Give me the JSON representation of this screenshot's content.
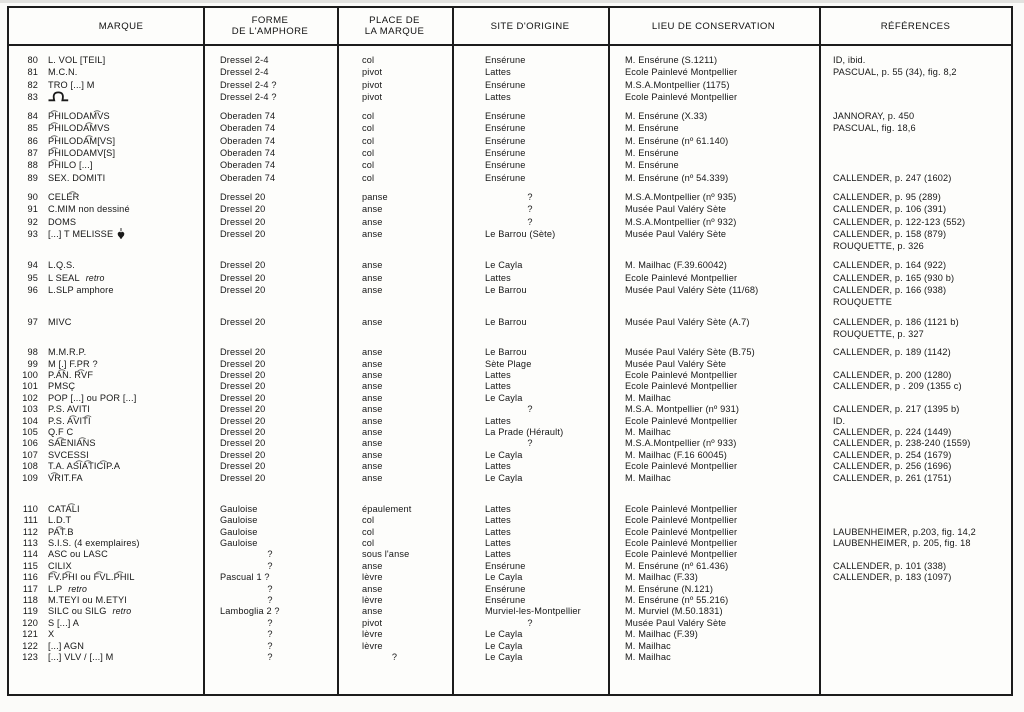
{
  "colors": {
    "ink": "#1c1c1c",
    "paper": "#fbfbf9"
  },
  "table": {
    "columns": [
      {
        "label": "MARQUE"
      },
      {
        "label": "FORME",
        "label2": "DE L'AMPHORE"
      },
      {
        "label": "PLACE DE",
        "label2": "LA MARQUE"
      },
      {
        "label": "SITE D'ORIGINE"
      },
      {
        "label": "LIEU DE CONSERVATION"
      },
      {
        "label": "RÉFÉRENCES"
      }
    ],
    "groups": [
      {
        "rows": [
          {
            "n": "80",
            "marque": "L. VOL [TEIL]",
            "forme": "Dressel 2-4",
            "place": "col",
            "site": "Ensérune",
            "lieu": "M. Ensérune (S.1211)",
            "ref": "ID, ibid."
          },
          {
            "n": "81",
            "marque": "M.C.N.",
            "forme": "Dressel 2-4",
            "place": "pivot",
            "site": "Lattes",
            "lieu": "Ecole Painlevé Montpellier",
            "ref": "PASCUAL, p. 55 (34), fig. 8,2"
          },
          {
            "n": "82",
            "marque": "TRO [...] M",
            "forme": "Dressel 2-4 ?",
            "place": "pivot",
            "site": "Ensérune",
            "lieu": "M.S.A.Montpellier (1175)",
            "ref": ""
          },
          {
            "n": "83",
            "marque": "",
            "glyph": "stamp-ligature",
            "forme": "Dressel 2-4 ?",
            "place": "pivot",
            "site": "Lattes",
            "lieu": "Ecole Painlevé Montpellier",
            "ref": ""
          }
        ]
      },
      {
        "rows": [
          {
            "n": "84",
            "marque": "P͡HILODAM͡VS",
            "forme": "Oberaden 74",
            "place": "col",
            "site": "Ensérune",
            "lieu": "M. Ensérune (X.33)",
            "ref": "JANNORAY, p. 450"
          },
          {
            "n": "85",
            "marque": "P͡HILODA͡MVS",
            "forme": "Oberaden 74",
            "place": "col",
            "site": "Ensérune",
            "lieu": "M. Ensérune",
            "ref": "PASCUAL, fig. 18,6"
          },
          {
            "n": "86",
            "marque": "P͡HILODA͡M[VS]",
            "forme": "Oberaden 74",
            "place": "col",
            "site": "Ensérune",
            "lieu": "M. Ensérune (nº 61.140)",
            "ref": ""
          },
          {
            "n": "87",
            "marque": "P͡HILODAMV[S]",
            "forme": "Oberaden 74",
            "place": "col",
            "site": "Ensérune",
            "lieu": "M. Ensérune",
            "ref": ""
          },
          {
            "n": "88",
            "marque": "P͡HILO [...]",
            "forme": "Oberaden 74",
            "place": "col",
            "site": "Ensérune",
            "lieu": "M. Ensérune",
            "ref": ""
          },
          {
            "n": "89",
            "marque": "SEX. DOMITI",
            "forme": "Oberaden 74",
            "place": "col",
            "site": "Ensérune",
            "lieu": "M. Ensérune (nº 54.339)",
            "ref": "CALLENDER, p. 247 (1602)"
          }
        ]
      },
      {
        "rows": [
          {
            "n": "90",
            "marque": "CELE͡R",
            "forme": "Dressel 20",
            "place": "panse",
            "site": "?",
            "lieu": "M.S.A.Montpellier (nº 935)",
            "ref": "CALLENDER, p. 95 (289)"
          },
          {
            "n": "91",
            "marque": "C.MIM non dessiné",
            "forme": "Dressel 20",
            "place": "anse",
            "site": "?",
            "lieu": "Musée Paul Valéry Sète",
            "ref": "CALLENDER, p. 106 (391)"
          },
          {
            "n": "92",
            "marque": "DOMS",
            "forme": "Dressel 20",
            "place": "anse",
            "site": "?",
            "lieu": "M.S.A.Montpellier (nº 932)",
            "ref": "CALLENDER, p. 122-123 (552)"
          },
          {
            "n": "93",
            "marque": "[...] T MELISSE",
            "symbol": "hedera",
            "forme": "Dressel 20",
            "place": "anse",
            "site": "Le Barrou (Sète)",
            "lieu": "Musée Paul Valéry Sète",
            "ref": "CALLENDER, p. 158 (879)",
            "ref2": "ROUQUETTE, p. 326"
          }
        ]
      },
      {
        "rows": [
          {
            "n": "94",
            "marque": "L.Q.S.",
            "forme": "Dressel 20",
            "place": "anse",
            "site": "Le Cayla",
            "lieu": "M. Mailhac (F.39.60042)",
            "ref": "CALLENDER, p. 164 (922)"
          },
          {
            "n": "95",
            "marque": "L SEAL",
            "note": "retro",
            "forme": "Dressel 20",
            "place": "anse",
            "site": "Lattes",
            "lieu": "Ecole Painlevé Montpellier",
            "ref": "CALLENDER, p. 165 (930 b)"
          },
          {
            "n": "96",
            "marque": "L.SLP  amphore",
            "forme": "Dressel 20",
            "place": "anse",
            "site": "Le Barrou",
            "lieu": "Musée Paul Valéry Sète (11/68)",
            "ref": "CALLENDER, p. 166 (938)",
            "ref2": "ROUQUETTE"
          }
        ]
      },
      {
        "rows": [
          {
            "n": "97",
            "marque": "MIVC",
            "forme": "Dressel 20",
            "place": "anse",
            "site": "Le Barrou",
            "lieu": "Musée Paul Valéry Sète (A.7)",
            "ref": "CALLENDER, p. 186 (1121 b)",
            "ref2": "ROUQUETTE, p. 327"
          }
        ]
      },
      {
        "rows": [
          {
            "n": "98",
            "marque": "M.M.R.P.",
            "forme": "Dressel 20",
            "place": "anse",
            "site": "Le Barrou",
            "lieu": "Musée Paul Valéry Sète (B.75)",
            "ref": "CALLENDER, p. 189 (1142)"
          },
          {
            "n": "99",
            "marque": "M [.] F.PR ?",
            "forme": "Dressel 20",
            "place": "anse",
            "site": "Sète Plage",
            "lieu": "Musée Paul Valéry Sète",
            "ref": ""
          },
          {
            "n": "100",
            "marque": "P.A͡N. R͡VF",
            "forme": "Dressel 20",
            "place": "anse",
            "site": "Lattes",
            "lieu": "Ecole Painlevé Montpellier",
            "ref": "CALLENDER, p. 200 (1280)"
          },
          {
            "n": "101",
            "marque": "PMSÇ",
            "forme": "Dressel 20",
            "place": "anse",
            "site": "Lattes",
            "lieu": "Ecole Painlevé Montpellier",
            "ref": "CALLENDER, p . 209 (1355 c)"
          },
          {
            "n": "102",
            "marque": "POP [...] ou POR [...]",
            "forme": "Dressel 20",
            "place": "anse",
            "site": "Le Cayla",
            "lieu": "M. Mailhac",
            "ref": ""
          },
          {
            "n": "103",
            "marque": "P.S. AVITI",
            "forme": "Dressel 20",
            "place": "anse",
            "site": "?",
            "lieu": "M.S.A. Montpellier (nº 931)",
            "ref": "CALLENDER, p. 217 (1395 b)"
          },
          {
            "n": "104",
            "marque": "P.S. A͡VIT͡I",
            "forme": "Dressel 20",
            "place": "anse",
            "site": "Lattes",
            "lieu": "Ecole Painlevé Montpellier",
            "ref": "ID."
          },
          {
            "n": "105",
            "marque": "Q.F C",
            "forme": "Dressel 20",
            "place": "anse",
            "site": "La Prade (Hérault)",
            "lieu": "M. Mailhac",
            "ref": "CALLENDER, p. 224 (1449)"
          },
          {
            "n": "106",
            "marque": "SA͡ENIA͡NS",
            "forme": "Dressel 20",
            "place": "anse",
            "site": "?",
            "lieu": "M.S.A.Montpellier (nº 933)",
            "ref": "CALLENDER, p. 238-240 (1559)"
          },
          {
            "n": "107",
            "marque": "SVCESSI",
            "forme": "Dressel 20",
            "place": "anse",
            "site": "Le Cayla",
            "lieu": "M. Mailhac (F.16 60045)",
            "ref": "CALLENDER, p. 254 (1679)"
          },
          {
            "n": "108",
            "marque": "T.A. AS͡IA͡TIC͡IP.A",
            "forme": "Dressel 20",
            "place": "anse",
            "site": "Lattes",
            "lieu": "Ecole Painlevé Montpellier",
            "ref": "CALLENDER, p. 256 (1696)"
          },
          {
            "n": "109",
            "marque": "V͡RIT.FA",
            "forme": "Dressel 20",
            "place": "anse",
            "site": "Le Cayla",
            "lieu": "M. Mailhac",
            "ref": "CALLENDER, p. 261 (1751)"
          }
        ]
      },
      {
        "rows": [
          {
            "n": "110",
            "marque": "CATA͡LI",
            "forme": "Gauloise",
            "place": "épaulement",
            "site": "Lattes",
            "lieu": "Ecole Painlevé Montpellier",
            "ref": ""
          },
          {
            "n": "111",
            "marque": "L.D.T",
            "forme": "Gauloise",
            "place": "col",
            "site": "Lattes",
            "lieu": "Ecole Painlevé Montpellier",
            "ref": ""
          },
          {
            "n": "112",
            "marque": "PA͡T.B",
            "forme": "Gauloise",
            "place": "col",
            "site": "Lattes",
            "lieu": "Ecole Painlevé Montpellier",
            "ref": "LAUBENHEIMER, p.203, fig. 14,2"
          },
          {
            "n": "113",
            "marque": "S.I.S. (4 exemplaires)",
            "forme": "Gauloise",
            "place": "col",
            "site": "Lattes",
            "lieu": "Ecole Painlevé Montpellier",
            "ref": "LAUBENHEIMER, p. 205, fig. 18"
          },
          {
            "n": "114",
            "marque": "ASC ou LASC",
            "forme": "?",
            "place": "sous l'anse",
            "site": "Lattes",
            "lieu": "Ecole Painlevé Montpellier",
            "ref": ""
          },
          {
            "n": "115",
            "marque": "CILIX",
            "forme": "?",
            "place": "anse",
            "site": "Ensérune",
            "lieu": "M. Ensérune (nº 61.436)",
            "ref": "CALLENDER, p. 101 (338)"
          },
          {
            "n": "116",
            "marque": "F͡V.P͡HI ou F͡VL.P͡HIL",
            "forme": "Pascual 1 ?",
            "place": "lèvre",
            "site": "Le Cayla",
            "lieu": "M. Mailhac (F.33)",
            "ref": "CALLENDER, p. 183 (1097)"
          },
          {
            "n": "117",
            "marque": "L.P",
            "note": "retro",
            "forme": "?",
            "place": "anse",
            "site": "Ensérune",
            "lieu": "M. Ensérune (N.121)",
            "ref": ""
          },
          {
            "n": "118",
            "marque": "M.TEYI ou M.ETYI",
            "forme": "?",
            "place": "lèvre",
            "site": "Ensérune",
            "lieu": "M. Ensérune (nº 55.216)",
            "ref": ""
          },
          {
            "n": "119",
            "marque": "SILC ou SILG",
            "note": "retro",
            "forme": "Lamboglia 2 ?",
            "place": "anse",
            "site": "Murviel-les-Montpellier",
            "lieu": "M. Murviel (M.50.1831)",
            "ref": ""
          },
          {
            "n": "120",
            "marque": "S [...] A",
            "forme": "?",
            "place": "pivot",
            "site": "?",
            "lieu": "Musée Paul Valéry Sète",
            "ref": ""
          },
          {
            "n": "121",
            "marque": "X",
            "forme": "?",
            "place": "lèvre",
            "site": "Le Cayla",
            "lieu": "M. Mailhac (F.39)",
            "ref": ""
          },
          {
            "n": "122",
            "marque": "[...] AGN",
            "forme": "?",
            "place": "lèvre",
            "site": "Le Cayla",
            "lieu": "M. Mailhac",
            "ref": ""
          },
          {
            "n": "123",
            "marque": "[...] VLV / [...] M",
            "forme": "?",
            "place": "?",
            "site": "Le Cayla",
            "lieu": "M. Mailhac",
            "ref": ""
          }
        ]
      }
    ]
  }
}
